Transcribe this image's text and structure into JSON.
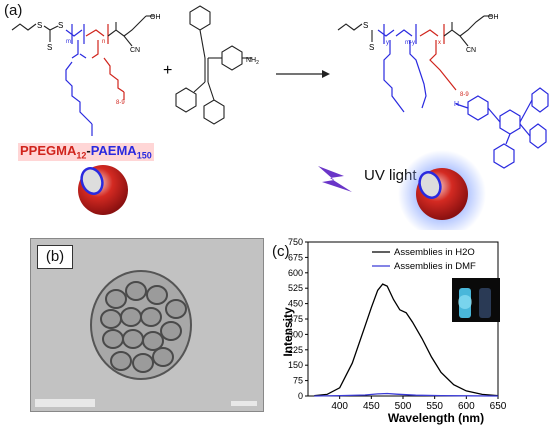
{
  "panels": {
    "a_label": "(a)",
    "b_label": "(b)",
    "c_label": "(c)"
  },
  "scheme": {
    "polymer_name_part1": "PPEGMA",
    "polymer_sub1": "12",
    "polymer_dash": "-",
    "polymer_name_part2": "PAEMA",
    "polymer_sub2": "150",
    "uv_label": "UV light",
    "plus": "+",
    "nh2": "NH",
    "nh2_sub": "2",
    "left_sub_m": "m",
    "left_sub_n": "n",
    "right_sub_y": "y",
    "right_sub_x": "x",
    "right_sub_my": "m-y",
    "sub_8_9": "8-9",
    "cn": "CN",
    "oh": "OH",
    "hn_label": "H",
    "colors": {
      "red": "#d0241c",
      "blue": "#2a2adf",
      "purple": "#6a35c8",
      "glow": "#8aa7ff"
    }
  },
  "chart_data": {
    "type": "line",
    "title": "",
    "xlabel": "Wavelength (nm)",
    "ylabel": "Intensity",
    "xlim": [
      350,
      650
    ],
    "ylim": [
      0,
      750
    ],
    "xticks": [
      "400",
      "450",
      "500",
      "550",
      "600",
      "650"
    ],
    "yticks": [
      "0",
      "75",
      "150",
      "225",
      "300",
      "375",
      "450",
      "525",
      "600",
      "675",
      "750"
    ],
    "legend_placement": "top-right",
    "series": [
      {
        "name": "Assemblies in H2O",
        "color": "#000000",
        "x": [
          360,
          380,
          400,
          420,
          440,
          450,
          460,
          468,
          475,
          485,
          495,
          505,
          515,
          530,
          545,
          560,
          580,
          600,
          625,
          650
        ],
        "y": [
          2,
          8,
          40,
          160,
          340,
          430,
          515,
          545,
          535,
          470,
          420,
          405,
          360,
          280,
          190,
          115,
          55,
          25,
          8,
          2
        ]
      },
      {
        "name": "Assemblies in DMF",
        "color": "#3b3bd6",
        "x": [
          360,
          400,
          440,
          460,
          475,
          490,
          520,
          560,
          600,
          650
        ],
        "y": [
          0,
          2,
          5,
          10,
          12,
          9,
          4,
          2,
          1,
          0
        ]
      }
    ]
  }
}
